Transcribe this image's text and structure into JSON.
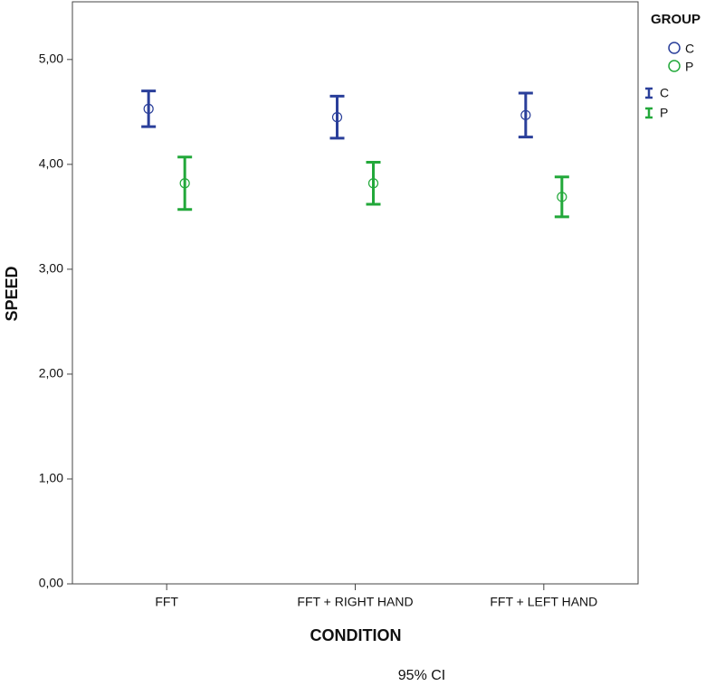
{
  "chart_data": {
    "type": "errorbar",
    "y_label": "SPEED",
    "x_label": "CONDITION",
    "footnote": "95% CI",
    "legend_title": "GROUP",
    "categories": [
      "FFT",
      "FFT + RIGHT HAND",
      "FFT + LEFT HAND"
    ],
    "series": [
      {
        "name": "C",
        "color": "#2a3f9a",
        "values": [
          4.53,
          4.45,
          4.47
        ],
        "errors": [
          0.17,
          0.2,
          0.21
        ]
      },
      {
        "name": "P",
        "color": "#22a83a",
        "values": [
          3.82,
          3.82,
          3.69
        ],
        "errors": [
          0.25,
          0.2,
          0.19
        ]
      }
    ],
    "ylim": [
      0,
      5.55
    ],
    "yticks": [
      {
        "value": 0,
        "label": "0,00"
      },
      {
        "value": 1,
        "label": "1,00"
      },
      {
        "value": 2,
        "label": "2,00"
      },
      {
        "value": 3,
        "label": "3,00"
      },
      {
        "value": 4,
        "label": "4,00"
      },
      {
        "value": 5,
        "label": "5,00"
      }
    ]
  }
}
